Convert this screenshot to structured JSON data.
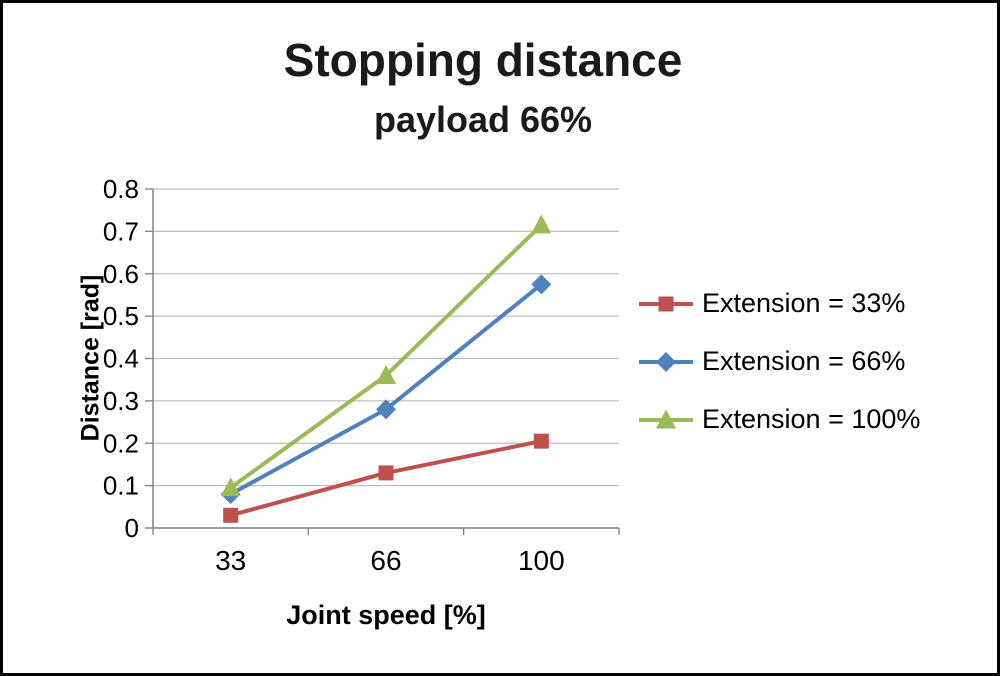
{
  "chart_data": {
    "type": "line",
    "title": "Stopping distance",
    "subtitle": "payload 66%",
    "xlabel": "Joint speed [%]",
    "ylabel": "Distance [rad]",
    "categories": [
      "33",
      "66",
      "100"
    ],
    "ylim": [
      0,
      0.8
    ],
    "ytick_step": 0.1,
    "ytick_labels": [
      "0",
      "0.1",
      "0.2",
      "0.3",
      "0.4",
      "0.5",
      "0.6",
      "0.7",
      "0.8"
    ],
    "grid": true,
    "legend_position": "right",
    "series": [
      {
        "name": "Extension = 33%",
        "marker": "square",
        "color": "#C0504D",
        "values": [
          0.03,
          0.13,
          0.205
        ]
      },
      {
        "name": "Extension = 66%",
        "marker": "diamond",
        "color": "#4F81BD",
        "values": [
          0.08,
          0.28,
          0.575
        ]
      },
      {
        "name": "Extension = 100%",
        "marker": "triangle",
        "color": "#9BBB59",
        "values": [
          0.095,
          0.36,
          0.715
        ]
      }
    ],
    "colors": {
      "gridline": "#BFBFBF",
      "axis": "#808080",
      "text": "#000000",
      "background": "#FFFFFF",
      "border": "#000000"
    }
  }
}
